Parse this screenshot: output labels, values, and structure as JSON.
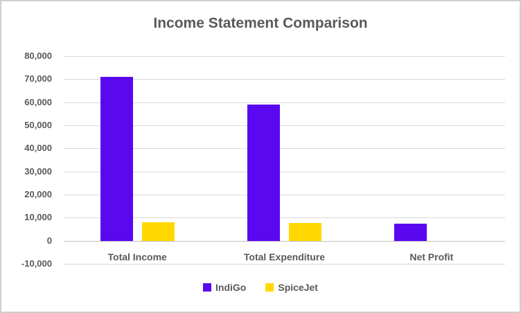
{
  "window": {
    "background": "#FFFFFF",
    "border_color": "#D0CECE"
  },
  "chart_data": {
    "type": "bar",
    "title": "Income Statement Comparison",
    "categories": [
      "Total Income",
      "Total Expenditure",
      "Net Profit"
    ],
    "series": [
      {
        "name": "IndiGo",
        "color": "#5A08F0",
        "values": [
          71000,
          59000,
          7500
        ]
      },
      {
        "name": "SpiceJet",
        "color": "#FFD800",
        "values": [
          8000,
          7800,
          0
        ]
      }
    ],
    "ylim": [
      -10000,
      80000
    ],
    "ytick_step": 10000,
    "ytick_labels": [
      "80,000",
      "70,000",
      "60,000",
      "50,000",
      "40,000",
      "30,000",
      "20,000",
      "10,000",
      "0",
      "-10,000"
    ],
    "grid": true,
    "legend_position": "bottom",
    "gridline_color": "#D9D9D9",
    "axis_line_color": "#BFBFBF",
    "text_color": "#595959"
  }
}
